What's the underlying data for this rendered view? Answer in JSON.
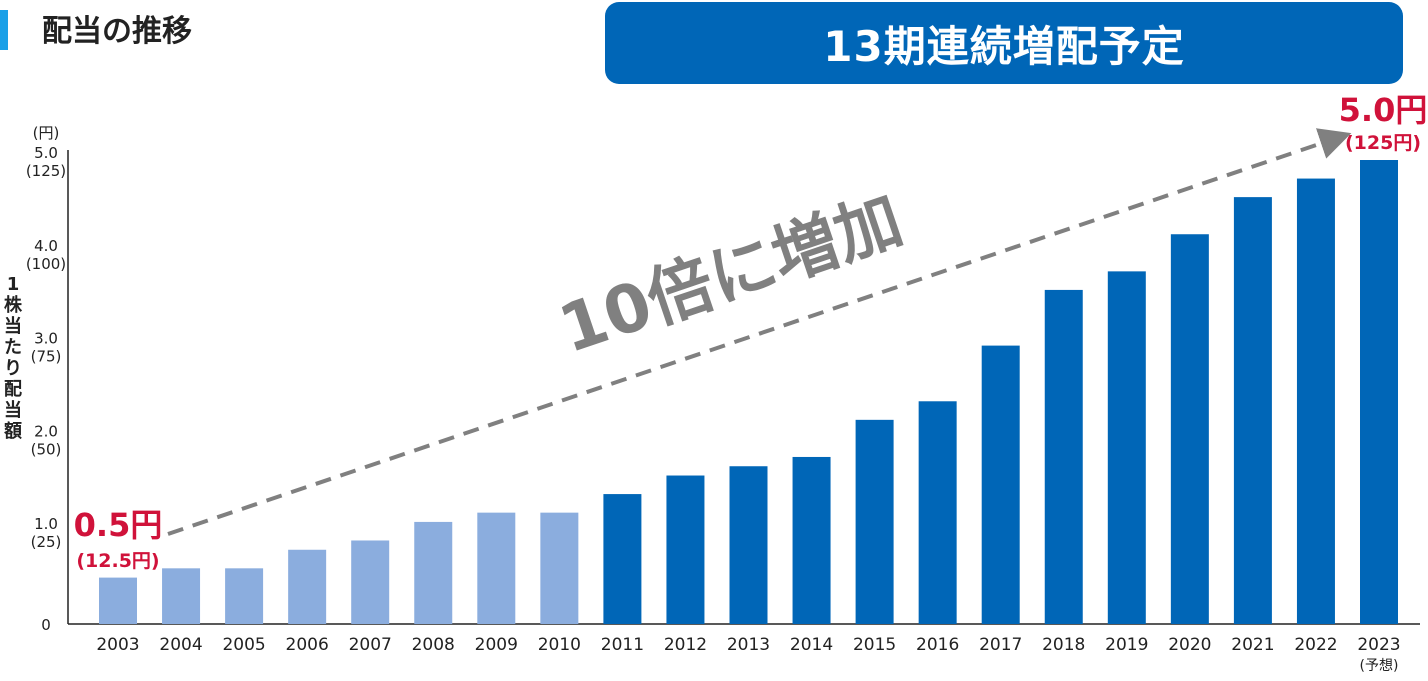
{
  "page": {
    "title": "配当の推移",
    "headline": "13期連続増配予定"
  },
  "colors": {
    "before_2011": "#8badde",
    "from_2011": "#0066b7",
    "highlight_red": "#d0123a",
    "arrow_gray": "#808080",
    "accent_bar": "#1aa0e8"
  },
  "chart_data": {
    "type": "bar",
    "ylabel": "1株当たり配当額",
    "yunit": "(円)",
    "ylim": [
      0,
      5.0
    ],
    "yticks": [
      {
        "value": 5.0,
        "label": "5.0",
        "sub": "(125)"
      },
      {
        "value": 4.0,
        "label": "4.0",
        "sub": "(100)"
      },
      {
        "value": 3.0,
        "label": "3.0",
        "sub": "(75)"
      },
      {
        "value": 2.0,
        "label": "2.0",
        "sub": "(50)"
      },
      {
        "value": 1.0,
        "label": "1.0",
        "sub": "(25)"
      },
      {
        "value": 0,
        "label": "0",
        "sub": ""
      }
    ],
    "categories": [
      "2003",
      "2004",
      "2005",
      "2006",
      "2007",
      "2008",
      "2009",
      "2010",
      "2011",
      "2012",
      "2013",
      "2014",
      "2015",
      "2016",
      "2017",
      "2018",
      "2019",
      "2020",
      "2021",
      "2022",
      "2023"
    ],
    "category_notes": {
      "2023": "(予想)"
    },
    "values": [
      0.5,
      0.6,
      0.6,
      0.8,
      0.9,
      1.1,
      1.2,
      1.2,
      1.4,
      1.6,
      1.7,
      1.8,
      2.2,
      2.4,
      3.0,
      3.6,
      3.8,
      4.2,
      4.6,
      4.8,
      5.0
    ],
    "highlights": {
      "start": {
        "main": "0.5円",
        "sub": "(12.5円)"
      },
      "end": {
        "main": "5.0円",
        "sub": "(125円)"
      }
    },
    "trend_label": "10倍に増加",
    "grid": false
  }
}
